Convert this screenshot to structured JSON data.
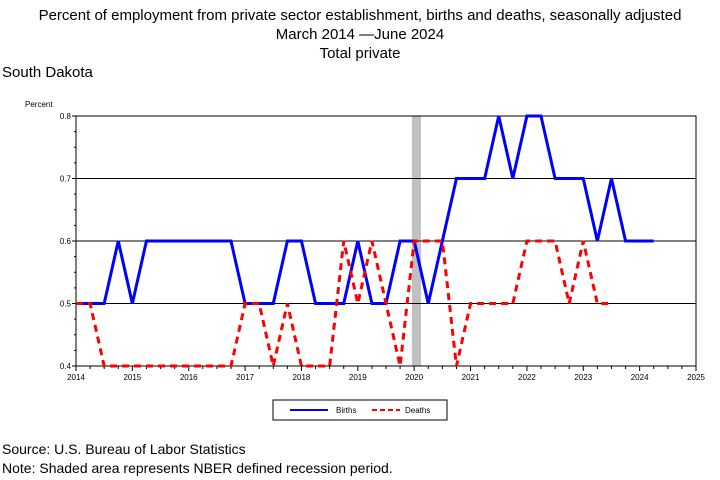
{
  "chart_data": {
    "type": "line",
    "title": "Percent of employment from private sector establishment, births and deaths, seasonally adjusted",
    "subtitle": "March 2014 —June 2024",
    "subtitle2": "Total private",
    "region": "South Dakota",
    "ylabel": "Percent",
    "xlabel": "",
    "xlim": [
      2014,
      2025
    ],
    "ylim": [
      0.4,
      0.8
    ],
    "x_ticks": [
      "2014",
      "2015",
      "2016",
      "2017",
      "2018",
      "2019",
      "2020",
      "2021",
      "2022",
      "2023",
      "2024",
      "2025"
    ],
    "y_ticks": [
      "0.4",
      "0.5",
      "0.6",
      "0.7",
      "0.8"
    ],
    "grid": "horizontal",
    "legend_position": "bottom",
    "recession": {
      "start": 2019.96,
      "end": 2020.12,
      "color": "#c0c0c0"
    },
    "series": [
      {
        "name": "Births",
        "color": "#0000ff",
        "style": "solid",
        "points": [
          [
            2014.0,
            0.5
          ],
          [
            2014.5,
            0.5
          ],
          [
            2014.75,
            0.6
          ],
          [
            2015.0,
            0.5
          ],
          [
            2015.25,
            0.6
          ],
          [
            2015.5,
            0.6
          ],
          [
            2015.75,
            0.6
          ],
          [
            2016.0,
            0.6
          ],
          [
            2016.25,
            0.6
          ],
          [
            2016.5,
            0.6
          ],
          [
            2016.75,
            0.6
          ],
          [
            2017.0,
            0.5
          ],
          [
            2017.25,
            0.5
          ],
          [
            2017.5,
            0.5
          ],
          [
            2017.75,
            0.6
          ],
          [
            2018.0,
            0.6
          ],
          [
            2018.25,
            0.5
          ],
          [
            2018.5,
            0.5
          ],
          [
            2018.75,
            0.5
          ],
          [
            2019.0,
            0.6
          ],
          [
            2019.25,
            0.5
          ],
          [
            2019.5,
            0.5
          ],
          [
            2019.75,
            0.6
          ],
          [
            2020.0,
            0.6
          ],
          [
            2020.25,
            0.5
          ],
          [
            2020.5,
            0.6
          ],
          [
            2020.75,
            0.7
          ],
          [
            2021.0,
            0.7
          ],
          [
            2021.25,
            0.7
          ],
          [
            2021.5,
            0.8
          ],
          [
            2021.75,
            0.7
          ],
          [
            2022.0,
            0.8
          ],
          [
            2022.25,
            0.8
          ],
          [
            2022.5,
            0.7
          ],
          [
            2022.75,
            0.7
          ],
          [
            2023.0,
            0.7
          ],
          [
            2023.25,
            0.6
          ],
          [
            2023.5,
            0.7
          ],
          [
            2023.75,
            0.6
          ],
          [
            2024.0,
            0.6
          ],
          [
            2024.25,
            0.6
          ]
        ]
      },
      {
        "name": "Deaths",
        "color": "#ff0000",
        "style": "dashed",
        "points": [
          [
            2014.0,
            0.5
          ],
          [
            2014.25,
            0.5
          ],
          [
            2014.5,
            0.4
          ],
          [
            2014.75,
            0.4
          ],
          [
            2015.0,
            0.4
          ],
          [
            2015.25,
            0.4
          ],
          [
            2015.5,
            0.4
          ],
          [
            2015.75,
            0.4
          ],
          [
            2016.0,
            0.4
          ],
          [
            2016.25,
            0.4
          ],
          [
            2016.5,
            0.4
          ],
          [
            2016.75,
            0.4
          ],
          [
            2017.0,
            0.5
          ],
          [
            2017.25,
            0.5
          ],
          [
            2017.5,
            0.4
          ],
          [
            2017.75,
            0.5
          ],
          [
            2018.0,
            0.4
          ],
          [
            2018.25,
            0.4
          ],
          [
            2018.5,
            0.4
          ],
          [
            2018.75,
            0.6
          ],
          [
            2019.0,
            0.5
          ],
          [
            2019.25,
            0.6
          ],
          [
            2019.5,
            0.5
          ],
          [
            2019.75,
            0.4
          ],
          [
            2020.0,
            0.6
          ],
          [
            2020.25,
            0.6
          ],
          [
            2020.5,
            0.6
          ],
          [
            2020.75,
            0.4
          ],
          [
            2021.0,
            0.5
          ],
          [
            2021.25,
            0.5
          ],
          [
            2021.5,
            0.5
          ],
          [
            2021.75,
            0.5
          ],
          [
            2022.0,
            0.6
          ],
          [
            2022.25,
            0.6
          ],
          [
            2022.5,
            0.6
          ],
          [
            2022.75,
            0.5
          ],
          [
            2023.0,
            0.6
          ],
          [
            2023.25,
            0.5
          ],
          [
            2023.5,
            0.5
          ]
        ]
      }
    ]
  },
  "footer": {
    "source": "Source: U.S. Bureau of Labor Statistics",
    "note": "Note: Shaded area represents NBER defined recession period."
  }
}
